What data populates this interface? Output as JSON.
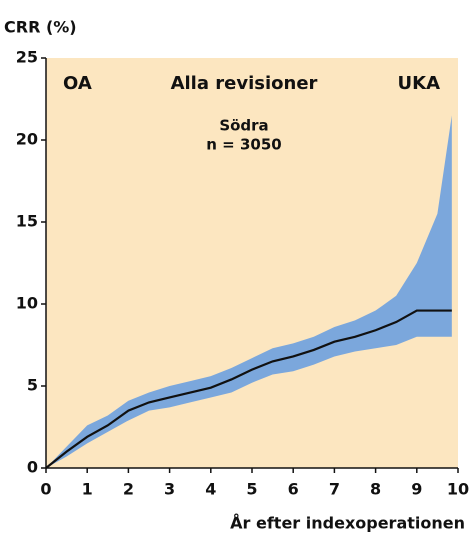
{
  "chart_data": {
    "type": "line",
    "y_label": "CRR (%)",
    "x_label": "År efter indexoperationen",
    "annotations": {
      "left": "OA",
      "center": "Alla revisioner",
      "right": "UKA",
      "group": "Södra",
      "n": "n = 3050"
    },
    "x": [
      0,
      0.5,
      1,
      1.5,
      2,
      2.5,
      3,
      3.5,
      4,
      4.5,
      5,
      5.5,
      6,
      6.5,
      7,
      7.5,
      8,
      8.5,
      9,
      9.5,
      9.85
    ],
    "values": [
      0,
      1.0,
      1.9,
      2.6,
      3.5,
      4.0,
      4.3,
      4.6,
      4.9,
      5.4,
      6.0,
      6.5,
      6.8,
      7.2,
      7.7,
      8.0,
      8.4,
      8.9,
      9.6,
      9.6,
      9.6
    ],
    "ci_upper": [
      0,
      1.3,
      2.6,
      3.2,
      4.1,
      4.6,
      5.0,
      5.3,
      5.6,
      6.1,
      6.7,
      7.3,
      7.6,
      8.0,
      8.6,
      9.0,
      9.6,
      10.5,
      12.5,
      15.5,
      21.5
    ],
    "ci_lower": [
      0,
      0.7,
      1.5,
      2.2,
      2.9,
      3.5,
      3.7,
      4.0,
      4.3,
      4.6,
      5.2,
      5.7,
      5.9,
      6.3,
      6.8,
      7.1,
      7.3,
      7.5,
      8.0,
      8.0,
      8.0
    ],
    "line_color": "#111111",
    "band_color": "#7ba7dc",
    "background": "#fce6c0",
    "left_color": "#1a7dc0",
    "xlim": [
      0,
      10
    ],
    "xticks": [
      0,
      1,
      2,
      3,
      4,
      5,
      6,
      7,
      8,
      9,
      10
    ],
    "ylim": [
      0,
      25
    ],
    "yticks": [
      0,
      5,
      10,
      15,
      20,
      25
    ]
  }
}
